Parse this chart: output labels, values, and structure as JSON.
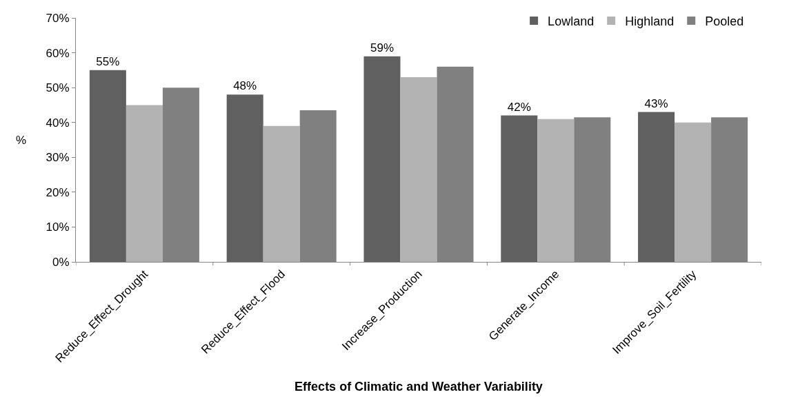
{
  "chart_data": {
    "type": "bar",
    "xlabel": "Effects of Climatic and Weather Variability",
    "ylabel": "%",
    "categories": [
      "Reduce_Effect_Drought",
      "Reduce_Effect_Flood",
      "Increase_Production",
      "Generate_Income",
      "Improve_Soil_Fertility"
    ],
    "series": [
      {
        "name": "Lowland",
        "color": "#606060",
        "values": [
          55,
          48,
          59,
          42,
          43
        ],
        "value_labels": [
          "55%",
          "48%",
          "59%",
          "42%",
          "43%"
        ]
      },
      {
        "name": "Highland",
        "color": "#b3b3b3",
        "values": [
          45,
          39,
          53,
          41,
          40
        ]
      },
      {
        "name": "Pooled",
        "color": "#808080",
        "values": [
          50,
          43.5,
          56,
          41.5,
          41.5
        ]
      }
    ],
    "ylim": [
      0,
      70
    ],
    "yticks": [
      {
        "value": 0,
        "label": "0%"
      },
      {
        "value": 10,
        "label": "10%"
      },
      {
        "value": 20,
        "label": "20%"
      },
      {
        "value": 30,
        "label": "30%"
      },
      {
        "value": 40,
        "label": "40%"
      },
      {
        "value": 50,
        "label": "50%"
      },
      {
        "value": 60,
        "label": "60%"
      },
      {
        "value": 70,
        "label": "70%"
      }
    ],
    "legend": "top right"
  }
}
